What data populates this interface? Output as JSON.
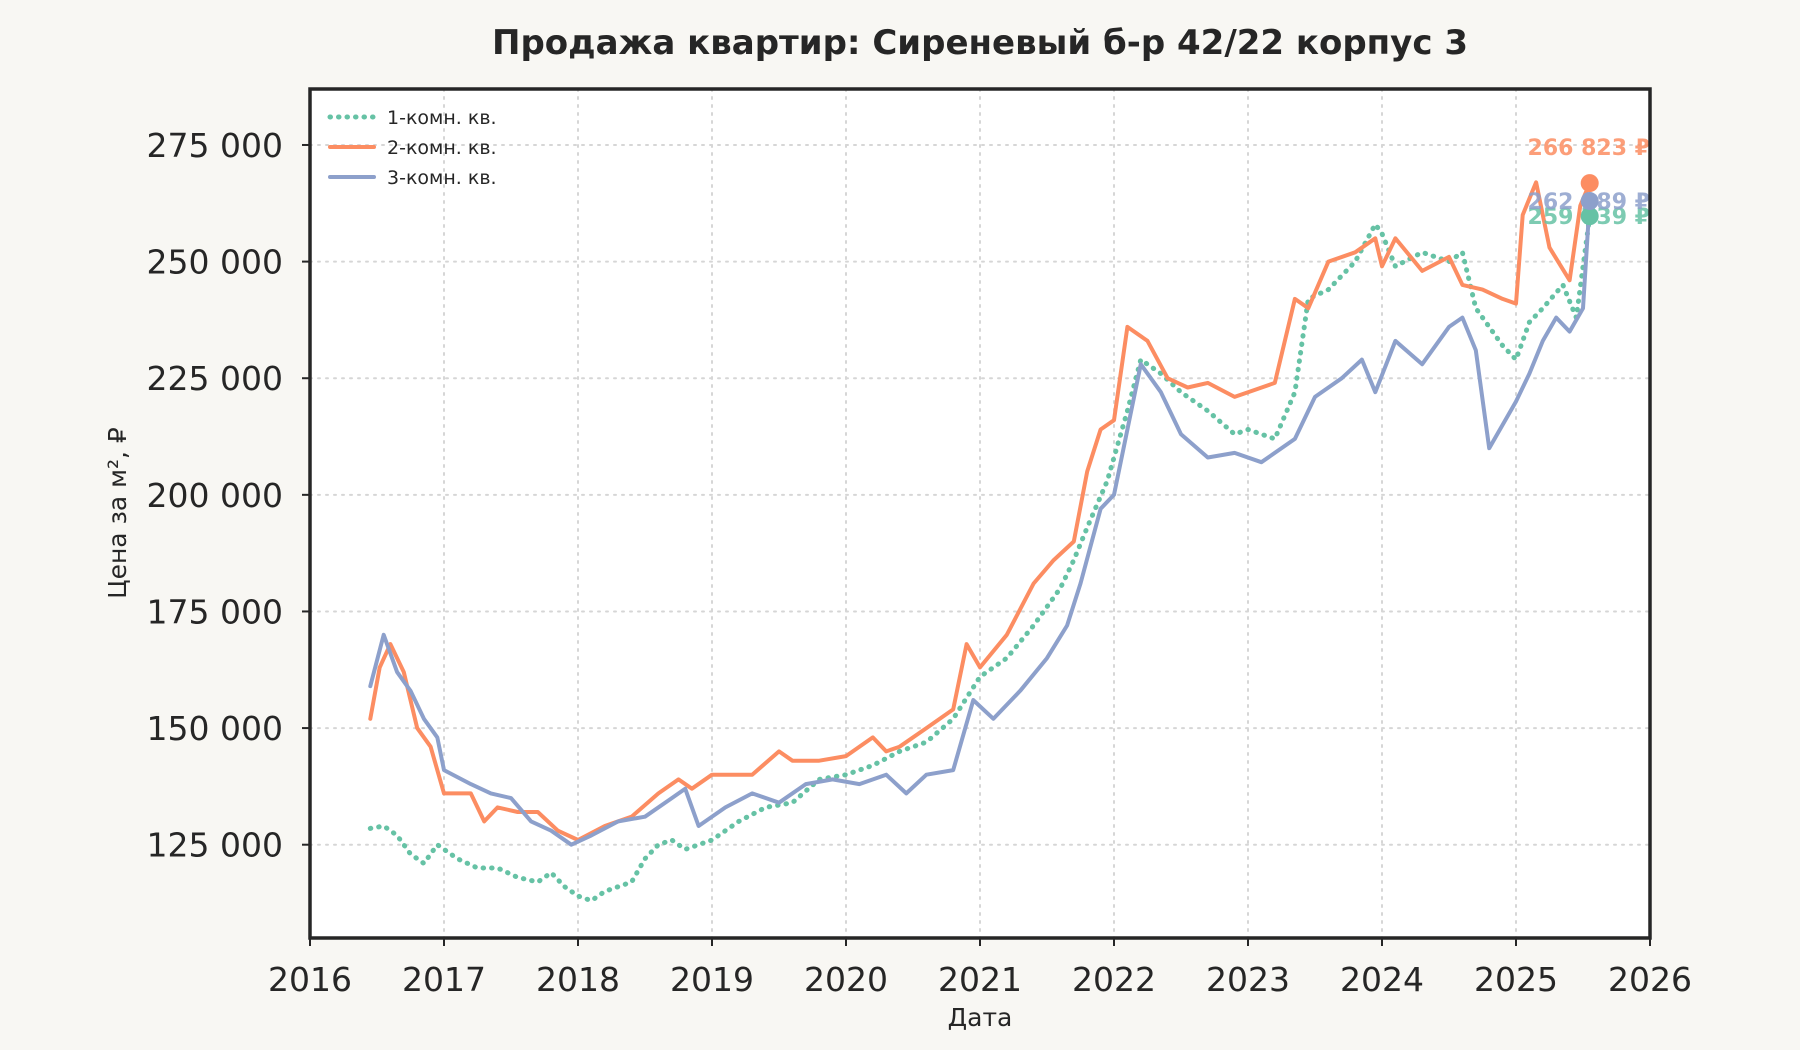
{
  "chart_data": {
    "type": "line",
    "title": "Продажа квартир: Сиреневый б-р 42/22 корпус 3",
    "xlabel": "Дата",
    "ylabel": "Цена за м², ₽",
    "xlim": [
      2016,
      2026
    ],
    "ylim": [
      105000,
      287000
    ],
    "x_ticks": [
      2016,
      2017,
      2018,
      2019,
      2020,
      2021,
      2022,
      2023,
      2024,
      2025,
      2026
    ],
    "x_tick_labels": [
      "2016",
      "2017",
      "2018",
      "2019",
      "2020",
      "2021",
      "2022",
      "2023",
      "2024",
      "2025",
      "2026"
    ],
    "y_ticks": [
      125000,
      150000,
      175000,
      200000,
      225000,
      250000,
      275000
    ],
    "y_tick_labels": [
      "125 000",
      "150 000",
      "175 000",
      "200 000",
      "225 000",
      "250 000",
      "275 000"
    ],
    "grid": true,
    "legend_position": "top-left",
    "series": [
      {
        "name": "1-комн. кв.",
        "color": "#66c2a5",
        "style": "dotted",
        "end_label": "259 739 ₽",
        "x": [
          2016.45,
          2016.55,
          2016.65,
          2016.75,
          2016.85,
          2016.95,
          2017.1,
          2017.25,
          2017.4,
          2017.55,
          2017.7,
          2017.8,
          2017.9,
          2018.0,
          2018.1,
          2018.2,
          2018.3,
          2018.4,
          2018.5,
          2018.6,
          2018.7,
          2018.8,
          2019.0,
          2019.2,
          2019.4,
          2019.6,
          2019.8,
          2020.0,
          2020.2,
          2020.4,
          2020.6,
          2020.8,
          2021.0,
          2021.2,
          2021.4,
          2021.6,
          2021.7,
          2021.8,
          2021.95,
          2022.1,
          2022.2,
          2022.35,
          2022.5,
          2022.7,
          2022.9,
          2023.0,
          2023.2,
          2023.35,
          2023.45,
          2023.6,
          2023.8,
          2023.95,
          2024.0,
          2024.1,
          2024.3,
          2024.5,
          2024.6,
          2024.7,
          2024.8,
          2024.9,
          2025.0,
          2025.1,
          2025.2,
          2025.35,
          2025.45,
          2025.55
        ],
        "y": [
          128500,
          129000,
          127000,
          123000,
          121000,
          125000,
          122000,
          120000,
          120000,
          118000,
          117000,
          119000,
          116000,
          114000,
          113000,
          115000,
          116000,
          117000,
          122000,
          125000,
          126000,
          124000,
          126000,
          130000,
          133000,
          134000,
          139000,
          140000,
          142000,
          145000,
          147000,
          152000,
          161000,
          165000,
          172000,
          180000,
          186000,
          193000,
          203000,
          218000,
          229000,
          226000,
          222000,
          218000,
          213000,
          214000,
          212000,
          222000,
          242000,
          244000,
          250000,
          258000,
          256000,
          249000,
          252000,
          250000,
          252000,
          240000,
          236000,
          232000,
          229000,
          237000,
          240000,
          245000,
          238000,
          259739
        ]
      },
      {
        "name": "2-комн. кв.",
        "color": "#fc8d62",
        "style": "solid",
        "end_label": "266 823 ₽",
        "x": [
          2016.45,
          2016.52,
          2016.6,
          2016.7,
          2016.8,
          2016.9,
          2017.0,
          2017.2,
          2017.3,
          2017.4,
          2017.55,
          2017.7,
          2017.85,
          2018.0,
          2018.2,
          2018.4,
          2018.6,
          2018.75,
          2018.85,
          2019.0,
          2019.3,
          2019.5,
          2019.6,
          2019.8,
          2020.0,
          2020.2,
          2020.3,
          2020.4,
          2020.6,
          2020.8,
          2020.9,
          2021.0,
          2021.2,
          2021.4,
          2021.55,
          2021.7,
          2021.8,
          2021.9,
          2022.0,
          2022.1,
          2022.25,
          2022.4,
          2022.55,
          2022.7,
          2022.9,
          2023.0,
          2023.2,
          2023.35,
          2023.45,
          2023.6,
          2023.8,
          2023.95,
          2024.0,
          2024.1,
          2024.3,
          2024.5,
          2024.6,
          2024.75,
          2024.9,
          2025.0,
          2025.05,
          2025.15,
          2025.25,
          2025.4,
          2025.48,
          2025.55
        ],
        "y": [
          152000,
          163000,
          168000,
          162000,
          150000,
          146000,
          136000,
          136000,
          130000,
          133000,
          132000,
          132000,
          128000,
          126000,
          129000,
          131000,
          136000,
          139000,
          137000,
          140000,
          140000,
          145000,
          143000,
          143000,
          144000,
          148000,
          145000,
          146000,
          150000,
          154000,
          168000,
          163000,
          170000,
          181000,
          186000,
          190000,
          205000,
          214000,
          216000,
          236000,
          233000,
          225000,
          223000,
          224000,
          221000,
          222000,
          224000,
          242000,
          240000,
          250000,
          252000,
          255000,
          249000,
          255000,
          248000,
          251000,
          245000,
          244000,
          242000,
          241000,
          260000,
          267000,
          253000,
          246000,
          262000,
          266823
        ]
      },
      {
        "name": "3-комн. кв.",
        "color": "#8da0cb",
        "style": "solid",
        "end_label": "262 989 ₽",
        "x": [
          2016.45,
          2016.55,
          2016.65,
          2016.75,
          2016.85,
          2016.95,
          2017.0,
          2017.2,
          2017.35,
          2017.5,
          2017.65,
          2017.8,
          2017.95,
          2018.1,
          2018.3,
          2018.5,
          2018.7,
          2018.8,
          2018.9,
          2019.1,
          2019.3,
          2019.5,
          2019.7,
          2019.9,
          2020.1,
          2020.3,
          2020.45,
          2020.6,
          2020.8,
          2020.95,
          2021.1,
          2021.3,
          2021.5,
          2021.65,
          2021.75,
          2021.9,
          2022.0,
          2022.2,
          2022.35,
          2022.5,
          2022.7,
          2022.9,
          2023.1,
          2023.35,
          2023.5,
          2023.7,
          2023.85,
          2023.95,
          2024.1,
          2024.3,
          2024.5,
          2024.6,
          2024.7,
          2024.8,
          2024.9,
          2025.0,
          2025.1,
          2025.2,
          2025.3,
          2025.4,
          2025.5,
          2025.55
        ],
        "y": [
          159000,
          170000,
          162000,
          158000,
          152000,
          148000,
          141000,
          138000,
          136000,
          135000,
          130000,
          128000,
          125000,
          127000,
          130000,
          131000,
          135000,
          137000,
          129000,
          133000,
          136000,
          134000,
          138000,
          139000,
          138000,
          140000,
          136000,
          140000,
          141000,
          156000,
          152000,
          158000,
          165000,
          172000,
          181000,
          197000,
          200000,
          228000,
          222000,
          213000,
          208000,
          209000,
          207000,
          212000,
          221000,
          225000,
          229000,
          222000,
          233000,
          228000,
          236000,
          238000,
          231000,
          210000,
          215000,
          220000,
          226000,
          233000,
          238000,
          235000,
          240000,
          262989
        ]
      }
    ]
  }
}
